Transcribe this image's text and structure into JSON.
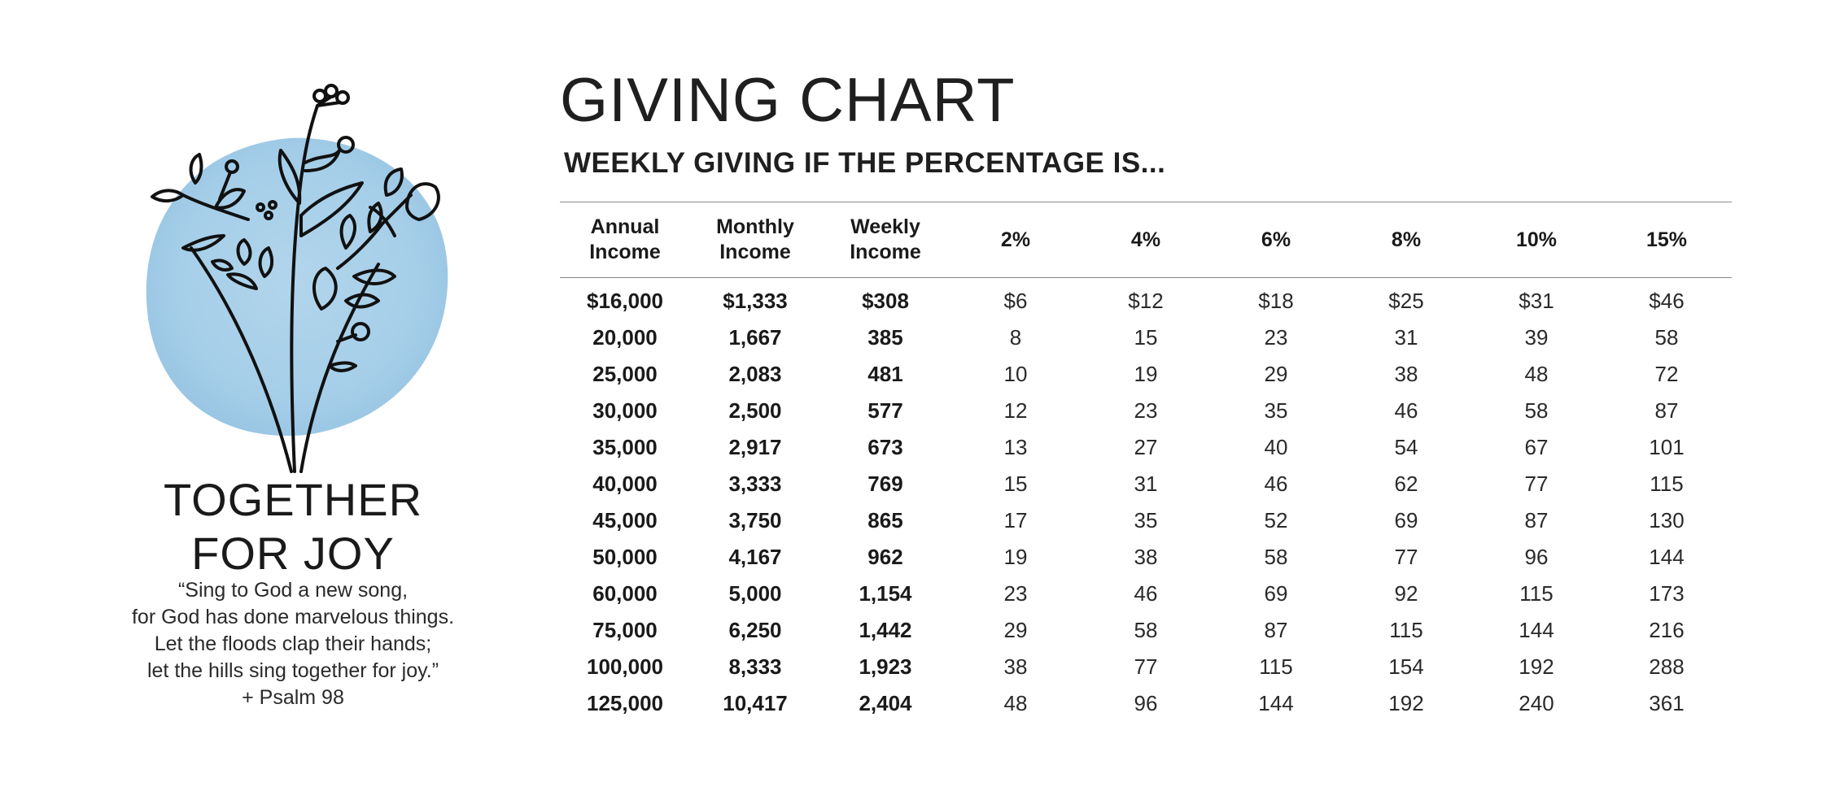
{
  "brand": {
    "title_line1": "TOGETHER",
    "title_line2": "FOR JOY",
    "verse_lines": [
      "“Sing to God a new song,",
      "for God has done marvelous things.",
      "Let the floods clap their hands;",
      "let the hills sing together for joy.”",
      "+ Psalm 98"
    ],
    "watercolor_color": "#9cc9e6",
    "illustration": "wildflower-bouquet-icon"
  },
  "chart": {
    "title": "GIVING CHART",
    "subtitle": "WEEKLY GIVING IF THE PERCENTAGE IS...",
    "headers": [
      [
        "Annual",
        "Income"
      ],
      [
        "Monthly",
        "Income"
      ],
      [
        "Weekly",
        "Income"
      ],
      [
        "2%"
      ],
      [
        "4%"
      ],
      [
        "6%"
      ],
      [
        "8%"
      ],
      [
        "10%"
      ],
      [
        "15%"
      ]
    ],
    "rows": [
      [
        "$16,000",
        "$1,333",
        "$308",
        "$6",
        "$12",
        "$18",
        "$25",
        "$31",
        "$46"
      ],
      [
        "20,000",
        "1,667",
        "385",
        "8",
        "15",
        "23",
        "31",
        "39",
        "58"
      ],
      [
        "25,000",
        "2,083",
        "481",
        "10",
        "19",
        "29",
        "38",
        "48",
        "72"
      ],
      [
        "30,000",
        "2,500",
        "577",
        "12",
        "23",
        "35",
        "46",
        "58",
        "87"
      ],
      [
        "35,000",
        "2,917",
        "673",
        "13",
        "27",
        "40",
        "54",
        "67",
        "101"
      ],
      [
        "40,000",
        "3,333",
        "769",
        "15",
        "31",
        "46",
        "62",
        "77",
        "115"
      ],
      [
        "45,000",
        "3,750",
        "865",
        "17",
        "35",
        "52",
        "69",
        "87",
        "130"
      ],
      [
        "50,000",
        "4,167",
        "962",
        "19",
        "38",
        "58",
        "77",
        "96",
        "144"
      ],
      [
        "60,000",
        "5,000",
        "1,154",
        "23",
        "46",
        "69",
        "92",
        "115",
        "173"
      ],
      [
        "75,000",
        "6,250",
        "1,442",
        "29",
        "58",
        "87",
        "115",
        "144",
        "216"
      ],
      [
        "100,000",
        "8,333",
        "1,923",
        "38",
        "77",
        "115",
        "154",
        "192",
        "288"
      ],
      [
        "125,000",
        "10,417",
        "2,404",
        "48",
        "96",
        "144",
        "192",
        "240",
        "361"
      ]
    ]
  }
}
